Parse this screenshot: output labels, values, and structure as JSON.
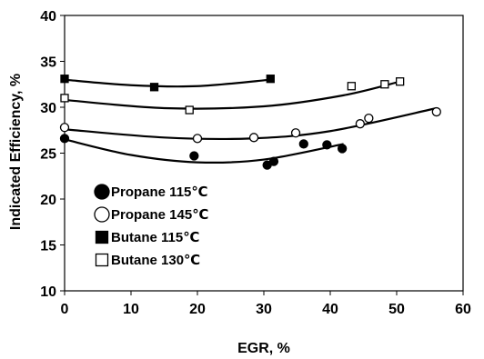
{
  "chart_data": {
    "type": "scatter",
    "xlabel": "EGR, %",
    "ylabel": "Indicated Efficiency, %",
    "xlim": [
      0,
      60
    ],
    "ylim": [
      10,
      40
    ],
    "xticks": [
      "0",
      "10",
      "20",
      "30",
      "40",
      "50",
      "60"
    ],
    "yticks": [
      "10",
      "15",
      "20",
      "25",
      "30",
      "35",
      "40"
    ],
    "grid": false,
    "legend_position": "bottom-left",
    "series": [
      {
        "name": "Propane 115℃",
        "marker": "filled-circle",
        "points": [
          [
            0,
            26.6
          ],
          [
            19.5,
            24.7
          ],
          [
            30.5,
            23.7
          ],
          [
            31.5,
            24.1
          ],
          [
            36,
            26.0
          ],
          [
            39.5,
            25.9
          ],
          [
            41.8,
            25.5
          ]
        ],
        "trend": [
          [
            0,
            26.5
          ],
          [
            10,
            24.8
          ],
          [
            20,
            24.0
          ],
          [
            30,
            24.3
          ],
          [
            42,
            26.0
          ]
        ]
      },
      {
        "name": "Propane 145℃",
        "marker": "open-circle",
        "points": [
          [
            0,
            27.8
          ],
          [
            20,
            26.6
          ],
          [
            28.5,
            26.7
          ],
          [
            34.8,
            27.2
          ],
          [
            44.5,
            28.2
          ],
          [
            45.8,
            28.8
          ],
          [
            56,
            29.5
          ]
        ],
        "trend": [
          [
            0,
            27.6
          ],
          [
            15,
            26.7
          ],
          [
            28,
            26.6
          ],
          [
            40,
            27.4
          ],
          [
            56,
            29.9
          ]
        ]
      },
      {
        "name": "Butane 115℃",
        "marker": "filled-square",
        "points": [
          [
            0,
            33.1
          ],
          [
            13.5,
            32.2
          ],
          [
            31,
            33.1
          ]
        ],
        "trend": [
          [
            0,
            33.0
          ],
          [
            10,
            32.4
          ],
          [
            20,
            32.3
          ],
          [
            31,
            33.0
          ]
        ]
      },
      {
        "name": "Butane 130℃",
        "marker": "open-square",
        "points": [
          [
            0,
            31.0
          ],
          [
            18.8,
            29.7
          ],
          [
            43.2,
            32.3
          ],
          [
            48.2,
            32.5
          ],
          [
            50.5,
            32.8
          ]
        ],
        "trend": [
          [
            0,
            30.8
          ],
          [
            15,
            29.9
          ],
          [
            30,
            30.1
          ],
          [
            42,
            31.3
          ],
          [
            50.5,
            32.8
          ]
        ]
      }
    ]
  }
}
